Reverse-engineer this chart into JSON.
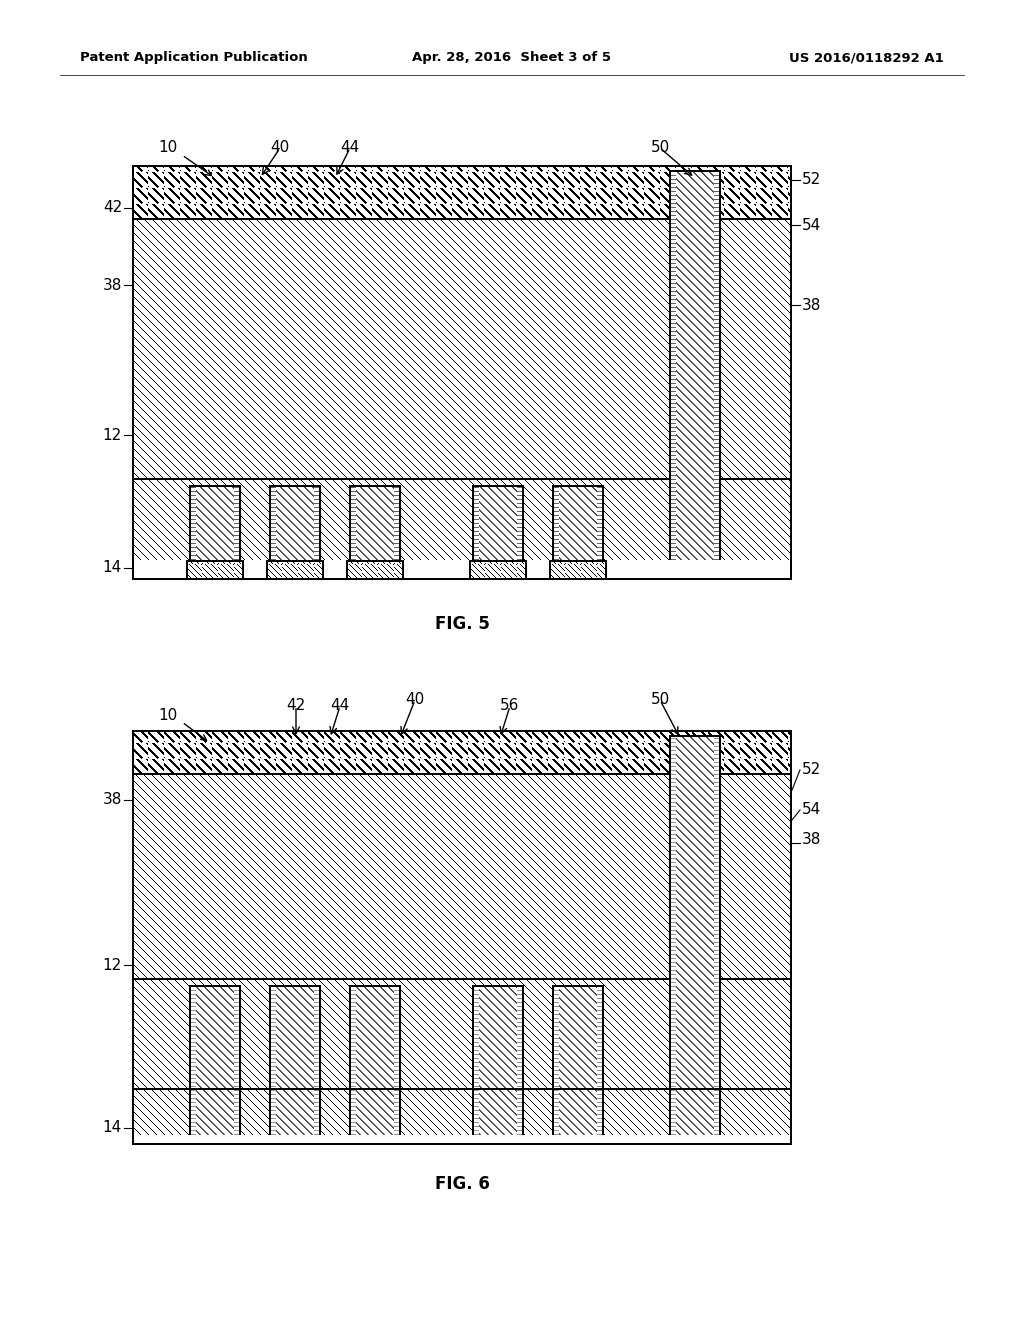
{
  "header_left": "Patent Application Publication",
  "header_mid": "Apr. 28, 2016  Sheet 3 of 5",
  "header_right": "US 2016/0118292 A1",
  "fig5_label": "FIG. 5",
  "fig6_label": "FIG. 6",
  "bg_color": "#ffffff"
}
